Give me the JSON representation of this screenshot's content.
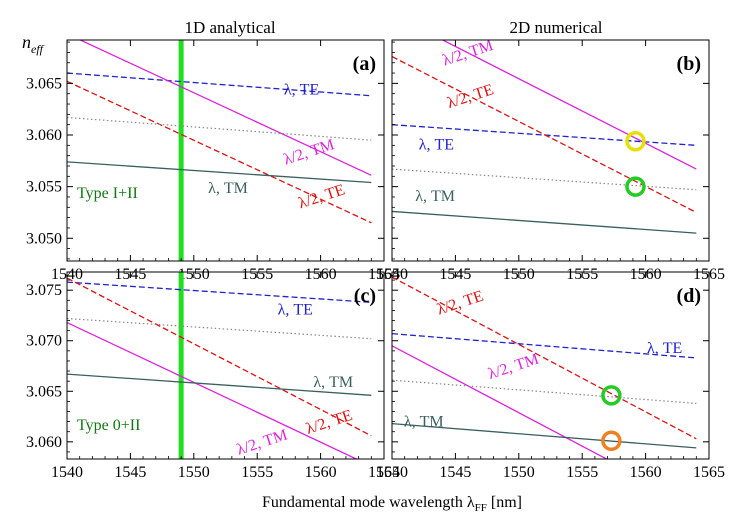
{
  "figure": {
    "column_titles": [
      "1D analytical",
      "2D numerical"
    ],
    "y_axis_label_main": "n",
    "y_axis_label_sub": "eff",
    "x_axis_label_main": "Fundamental mode wavelength λ",
    "x_axis_label_sub": "FF",
    "x_axis_label_unit": "[nm]"
  },
  "colors": {
    "te_fundamental": "#2222cc",
    "tm_fundamental": "#3a5f5f",
    "te_half": "#dd1111",
    "tm_half": "#dd22dd",
    "matching": "#888888",
    "marker_vertical": "#22dd22",
    "circle_green": "#22cc22",
    "circle_yellow": "#e8e000",
    "circle_orange": "#f08020",
    "type_label": "#117711"
  },
  "chart_data": [
    {
      "panel": "(a)",
      "type": "line",
      "xlim": [
        1540,
        1565
      ],
      "ylim": [
        3.0478,
        3.0692
      ],
      "xticks": [
        "1540",
        "1545",
        "1550",
        "1555",
        "1560",
        "1565"
      ],
      "yticks": [
        "3.050",
        "3.055",
        "3.060",
        "3.065"
      ],
      "show_x_tick_labels": true,
      "series": [
        {
          "name": "λ, TE",
          "style": "te_fundamental",
          "x": [
            1540,
            1564
          ],
          "y": [
            3.066,
            3.0638
          ]
        },
        {
          "name": "λ/2, TM",
          "style": "tm_half",
          "x": [
            1540,
            1564
          ],
          "y": [
            3.0698,
            3.0561
          ]
        },
        {
          "name": "λ/2, TE",
          "style": "te_half",
          "x": [
            1540,
            1564
          ],
          "y": [
            3.0652,
            3.0515
          ]
        },
        {
          "style": "matching",
          "x": [
            1540,
            1564
          ],
          "y": [
            3.0617,
            3.0595
          ]
        },
        {
          "name": "λ, TM",
          "style": "tm_fundamental",
          "x": [
            1540,
            1564
          ],
          "y": [
            3.0574,
            3.0554
          ]
        }
      ],
      "vertical_marker": {
        "x": 1549,
        "label": "Type I+II"
      },
      "labels": [
        {
          "text": "λ, TE",
          "style": "te_fundamental",
          "x": 1558.5,
          "y": 3.0639,
          "angle": 0
        },
        {
          "text": "λ/2, TM",
          "style": "tm_half",
          "x": 1559.2,
          "y": 3.0579,
          "angle": -18
        },
        {
          "text": "λ/2, TE",
          "style": "te_half",
          "x": 1560.2,
          "y": 3.0536,
          "angle": -18
        },
        {
          "text": "λ, TM",
          "style": "tm_fundamental",
          "x": 1552.7,
          "y": 3.0544,
          "angle": 0
        }
      ]
    },
    {
      "panel": "(b)",
      "type": "line",
      "xlim": [
        1540,
        1565
      ],
      "ylim": [
        3.0478,
        3.0692
      ],
      "xticks": [
        "1540",
        "1545",
        "1550",
        "1555",
        "1560",
        "1565"
      ],
      "yticks": [
        "3.050",
        "3.055",
        "3.060",
        "3.065"
      ],
      "show_x_tick_labels": true,
      "series": [
        {
          "name": "λ, TE",
          "style": "te_fundamental",
          "x": [
            1540,
            1564
          ],
          "y": [
            3.061,
            3.059
          ]
        },
        {
          "name": "λ/2, TM",
          "style": "tm_half",
          "x": [
            1540,
            1564
          ],
          "y": [
            3.0717,
            3.0567
          ]
        },
        {
          "name": "λ/2, TE",
          "style": "te_half",
          "x": [
            1540,
            1564
          ],
          "y": [
            3.0676,
            3.0525
          ]
        },
        {
          "style": "matching",
          "x": [
            1540,
            1564
          ],
          "y": [
            3.0567,
            3.0547
          ]
        },
        {
          "name": "λ, TM",
          "style": "tm_fundamental",
          "x": [
            1540,
            1564
          ],
          "y": [
            3.0526,
            3.0505
          ]
        }
      ],
      "circles": [
        {
          "x": 1559.2,
          "y": 3.0594,
          "style": "circle_yellow"
        },
        {
          "x": 1559.2,
          "y": 3.055,
          "style": "circle_green"
        }
      ],
      "labels": [
        {
          "text": "λ/2, TM",
          "style": "tm_half",
          "x": 1546.1,
          "y": 3.0675,
          "angle": -18
        },
        {
          "text": "λ/2, TE",
          "style": "te_half",
          "x": 1546.3,
          "y": 3.0633,
          "angle": -18
        },
        {
          "text": "λ, TE",
          "style": "te_fundamental",
          "x": 1543.5,
          "y": 3.0586,
          "angle": 0
        },
        {
          "text": "λ, TM",
          "style": "tm_fundamental",
          "x": 1543.4,
          "y": 3.0536,
          "angle": 0
        }
      ]
    },
    {
      "panel": "(c)",
      "type": "line",
      "xlim": [
        1540,
        1565
      ],
      "ylim": [
        3.0583,
        3.0768
      ],
      "xticks": [
        "1540",
        "1545",
        "1550",
        "1555",
        "1560",
        "1565"
      ],
      "yticks": [
        "3.060",
        "3.065",
        "3.070",
        "3.075"
      ],
      "show_x_tick_labels": true,
      "series": [
        {
          "name": "λ, TE",
          "style": "te_fundamental",
          "x": [
            1540,
            1564
          ],
          "y": [
            3.0758,
            3.0738
          ]
        },
        {
          "name": "λ/2, TM",
          "style": "tm_half",
          "x": [
            1540,
            1564
          ],
          "y": [
            3.0718,
            3.0576
          ]
        },
        {
          "name": "λ/2, TE",
          "style": "te_half",
          "x": [
            1540,
            1564
          ],
          "y": [
            3.0762,
            3.0606
          ]
        },
        {
          "style": "matching",
          "x": [
            1540,
            1564
          ],
          "y": [
            3.0722,
            3.0702
          ]
        },
        {
          "name": "λ, TM",
          "style": "tm_fundamental",
          "x": [
            1540,
            1564
          ],
          "y": [
            3.0667,
            3.0646
          ]
        }
      ],
      "vertical_marker": {
        "x": 1549,
        "label": "Type 0+II"
      },
      "labels": [
        {
          "text": "λ, TE",
          "style": "te_fundamental",
          "x": 1558.0,
          "y": 3.0726,
          "angle": 0
        },
        {
          "text": "λ, TM",
          "style": "tm_fundamental",
          "x": 1561.0,
          "y": 3.0654,
          "angle": 0
        },
        {
          "text": "λ/2, TE",
          "style": "te_half",
          "x": 1560.8,
          "y": 3.0615,
          "angle": -18
        },
        {
          "text": "λ/2, TM",
          "style": "tm_half",
          "x": 1555.5,
          "y": 3.0595,
          "angle": -18
        }
      ]
    },
    {
      "panel": "(d)",
      "type": "line",
      "xlim": [
        1540,
        1565
      ],
      "ylim": [
        3.0583,
        3.0768
      ],
      "xticks": [
        "1540",
        "1545",
        "1550",
        "1555",
        "1560",
        "1565"
      ],
      "yticks": [
        "3.060",
        "3.065",
        "3.070",
        "3.075"
      ],
      "show_x_tick_labels": true,
      "series": [
        {
          "name": "λ/2, TE",
          "style": "te_half",
          "x": [
            1540,
            1564
          ],
          "y": [
            3.0763,
            3.0603
          ]
        },
        {
          "name": "λ, TE",
          "style": "te_fundamental",
          "x": [
            1540,
            1564
          ],
          "y": [
            3.0707,
            3.0683
          ]
        },
        {
          "name": "λ/2, TM",
          "style": "tm_half",
          "x": [
            1540,
            1561
          ],
          "y": [
            3.0695,
            3.0556
          ]
        },
        {
          "style": "matching",
          "x": [
            1540,
            1564
          ],
          "y": [
            3.0661,
            3.0638
          ]
        },
        {
          "name": "λ, TM",
          "style": "tm_fundamental",
          "x": [
            1540,
            1564
          ],
          "y": [
            3.0618,
            3.0594
          ]
        }
      ],
      "circles": [
        {
          "x": 1557.3,
          "y": 3.0646,
          "style": "circle_green"
        },
        {
          "x": 1557.3,
          "y": 3.0601,
          "style": "circle_orange"
        }
      ],
      "labels": [
        {
          "text": "λ/2, TE",
          "style": "te_half",
          "x": 1545.5,
          "y": 3.0733,
          "angle": -18
        },
        {
          "text": "λ, TE",
          "style": "te_fundamental",
          "x": 1561.5,
          "y": 3.0688,
          "angle": 0
        },
        {
          "text": "λ/2, TM",
          "style": "tm_half",
          "x": 1549.7,
          "y": 3.067,
          "angle": -18
        },
        {
          "text": "λ, TM",
          "style": "tm_fundamental",
          "x": 1542.5,
          "y": 3.0615,
          "angle": 0
        }
      ]
    }
  ]
}
